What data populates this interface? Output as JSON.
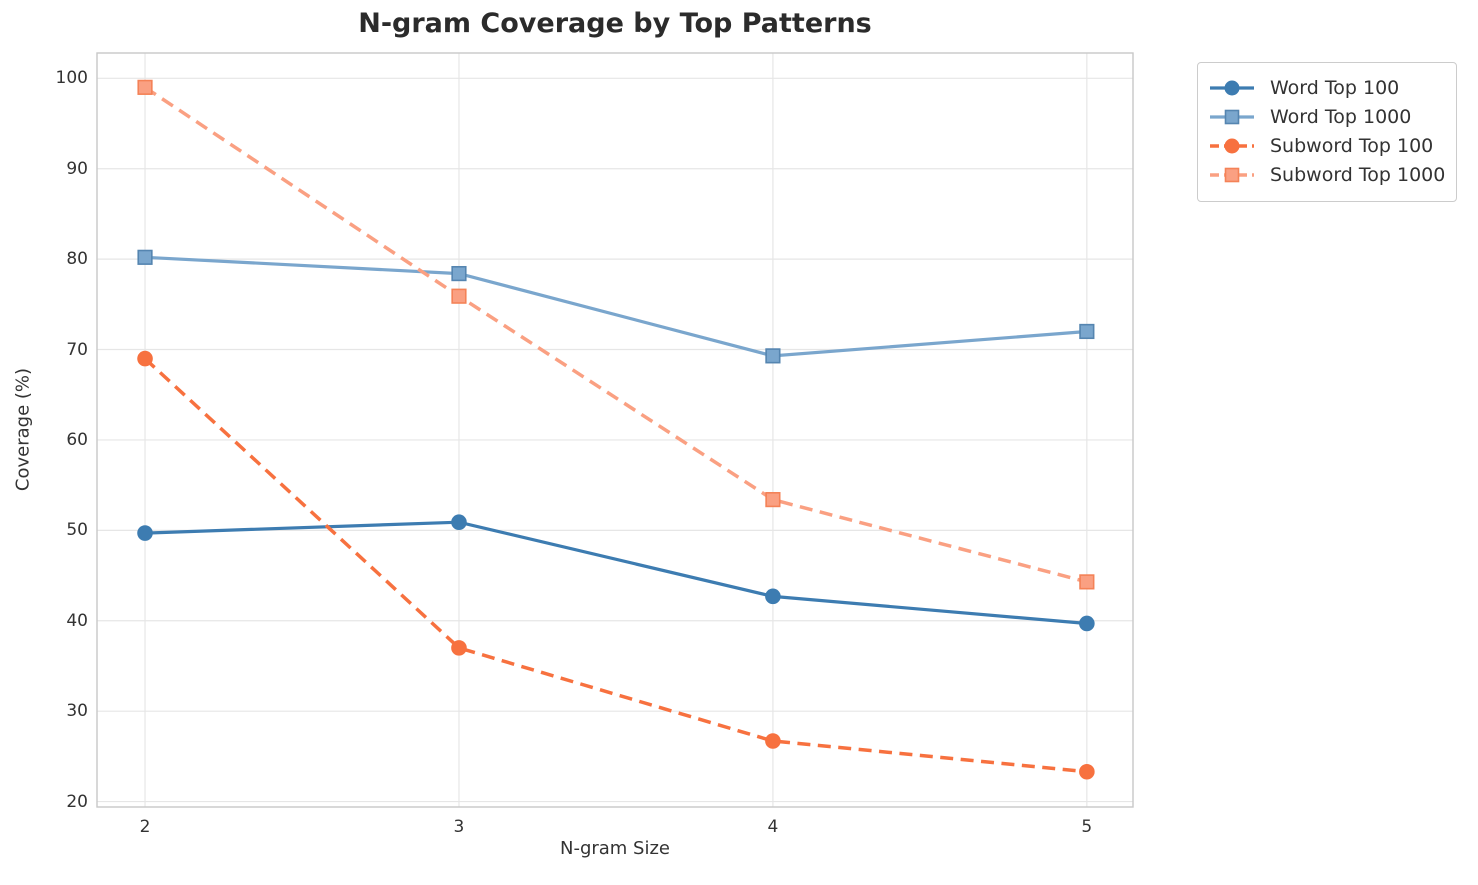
{
  "chart_data": {
    "type": "line",
    "title": "N-gram Coverage by Top Patterns",
    "xlabel": "N-gram Size",
    "ylabel": "Coverage (%)",
    "x": [
      2,
      3,
      4,
      5
    ],
    "xtick_labels": [
      "2",
      "3",
      "4",
      "5"
    ],
    "ytick_values": [
      20,
      30,
      40,
      50,
      60,
      70,
      80,
      90,
      100
    ],
    "xlim": [
      1.847,
      5.147
    ],
    "ylim": [
      19.4,
      102.8
    ],
    "grid": true,
    "legend_position": "outside-top-right",
    "series": [
      {
        "name": "Word Top 100",
        "values": [
          49.7,
          50.9,
          42.7,
          39.7
        ],
        "color": "#3d7cb1",
        "edge_color": "#3d7cb1",
        "marker": "circle",
        "line_style": "solid"
      },
      {
        "name": "Word Top 1000",
        "values": [
          80.2,
          78.4,
          69.3,
          72.0
        ],
        "color": "#7aa6cd",
        "edge_color": "#5585b0",
        "marker": "square",
        "line_style": "solid"
      },
      {
        "name": "Subword Top 100",
        "values": [
          69.0,
          37.0,
          26.7,
          23.3
        ],
        "color": "#f7713f",
        "edge_color": "#f7713f",
        "marker": "circle",
        "line_style": "dashed"
      },
      {
        "name": "Subword Top 1000",
        "values": [
          99.0,
          75.9,
          53.4,
          44.3
        ],
        "color": "#faa082",
        "edge_color": "#f48257",
        "marker": "square",
        "line_style": "dashed"
      }
    ],
    "colors": {
      "background": "#ffffff",
      "grid": "#e6e6e6",
      "spine": "#c8c8c8",
      "text": "#333333",
      "title": "#2b2b2b"
    }
  }
}
